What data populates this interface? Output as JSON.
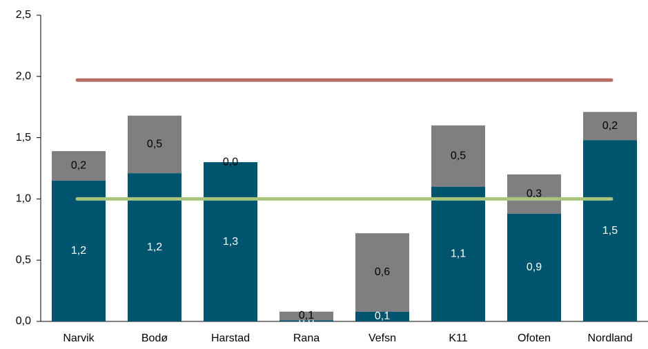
{
  "chart_data": {
    "type": "stacked_bar",
    "categories": [
      "Narvik",
      "Bodø",
      "Harstad",
      "Rana",
      "Vefsn",
      "K11",
      "Ofoten",
      "Nordland"
    ],
    "series": [
      {
        "color": "#00546e",
        "label_color": "#ffffff",
        "values": [
          1.15,
          1.21,
          1.3,
          0.01,
          0.08,
          1.1,
          0.88,
          1.48
        ],
        "value_labels": [
          "1,2",
          "1,2",
          "1,3",
          "0,0",
          "0,1",
          "1,1",
          "0,9",
          "1,5"
        ]
      },
      {
        "color": "#7f7f82",
        "label_color": "#000000",
        "values": [
          0.24,
          0.47,
          0.0,
          0.07,
          0.64,
          0.5,
          0.32,
          0.23
        ],
        "value_labels": [
          "0,2",
          "0,5",
          "0,0",
          "0,1",
          "0,6",
          "0,5",
          "0,3",
          "0,2"
        ]
      }
    ],
    "reference_lines": [
      {
        "value": 1.97,
        "color": "#b86c63"
      },
      {
        "value": 1.0,
        "color": "#a8c47e"
      }
    ],
    "ylim": [
      0,
      2.5
    ],
    "yticks": [
      {
        "value": 0,
        "label": "0,0"
      },
      {
        "value": 0.5,
        "label": "0,5"
      },
      {
        "value": 1.0,
        "label": "1,0"
      },
      {
        "value": 1.5,
        "label": "1,5"
      },
      {
        "value": 2.0,
        "label": "2,0"
      },
      {
        "value": 2.5,
        "label": "2,5"
      }
    ],
    "grid": false
  }
}
